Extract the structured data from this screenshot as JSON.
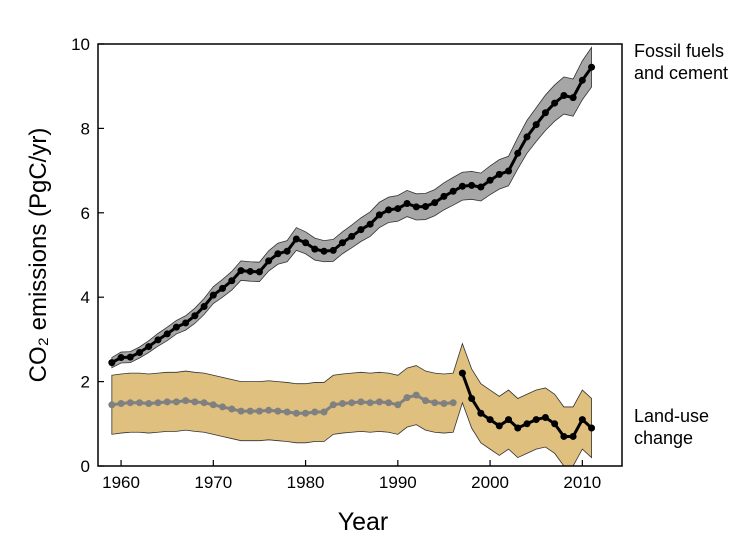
{
  "chart_data": {
    "type": "line",
    "xlabel": "Year",
    "ylabel": "CO₂ emissions (PgC/yr)",
    "x": [
      1959,
      1960,
      1961,
      1962,
      1963,
      1964,
      1965,
      1966,
      1967,
      1968,
      1969,
      1970,
      1971,
      1972,
      1973,
      1974,
      1975,
      1976,
      1977,
      1978,
      1979,
      1980,
      1981,
      1982,
      1983,
      1984,
      1985,
      1986,
      1987,
      1988,
      1989,
      1990,
      1991,
      1992,
      1993,
      1994,
      1995,
      1996,
      1997,
      1998,
      1999,
      2000,
      2001,
      2002,
      2003,
      2004,
      2005,
      2006,
      2007,
      2008,
      2009,
      2010,
      2011
    ],
    "xlim": [
      1957.5,
      2014.3
    ],
    "xticks": [
      1960,
      1970,
      1980,
      1990,
      2000,
      2010
    ],
    "ylim": [
      0,
      10
    ],
    "yticks": [
      0,
      2,
      4,
      6,
      8,
      10
    ],
    "series": [
      {
        "name": "Fossil fuels and cement",
        "color": "#000000",
        "band_color": "#a6a6a6",
        "values": [
          2.45,
          2.57,
          2.58,
          2.69,
          2.83,
          2.99,
          3.13,
          3.29,
          3.39,
          3.56,
          3.78,
          4.05,
          4.21,
          4.39,
          4.63,
          4.61,
          4.6,
          4.86,
          5.03,
          5.09,
          5.38,
          5.29,
          5.14,
          5.09,
          5.11,
          5.29,
          5.44,
          5.6,
          5.73,
          5.95,
          6.07,
          6.1,
          6.22,
          6.14,
          6.15,
          6.24,
          6.39,
          6.51,
          6.63,
          6.65,
          6.61,
          6.77,
          6.91,
          6.99,
          7.41,
          7.8,
          8.09,
          8.37,
          8.6,
          8.78,
          8.73,
          9.14,
          9.45
        ],
        "lower": [
          2.33,
          2.44,
          2.45,
          2.56,
          2.69,
          2.84,
          2.97,
          3.13,
          3.22,
          3.38,
          3.59,
          3.85,
          4.0,
          4.17,
          4.4,
          4.38,
          4.37,
          4.62,
          4.78,
          4.84,
          5.11,
          5.03,
          4.88,
          4.84,
          4.85,
          5.03,
          5.17,
          5.32,
          5.44,
          5.65,
          5.77,
          5.8,
          5.91,
          5.83,
          5.84,
          5.93,
          6.07,
          6.18,
          6.3,
          6.32,
          6.28,
          6.43,
          6.56,
          6.64,
          7.04,
          7.41,
          7.69,
          7.95,
          8.17,
          8.34,
          8.29,
          8.68,
          8.98
        ],
        "upper": [
          2.57,
          2.7,
          2.71,
          2.82,
          2.97,
          3.14,
          3.29,
          3.45,
          3.56,
          3.74,
          3.97,
          4.25,
          4.42,
          4.61,
          4.86,
          4.84,
          4.83,
          5.1,
          5.28,
          5.34,
          5.65,
          5.55,
          5.4,
          5.34,
          5.37,
          5.55,
          5.71,
          5.88,
          6.02,
          6.25,
          6.37,
          6.41,
          6.53,
          6.45,
          6.46,
          6.55,
          6.71,
          6.84,
          6.96,
          6.98,
          6.94,
          7.11,
          7.26,
          7.34,
          7.78,
          8.19,
          8.49,
          8.79,
          9.03,
          9.22,
          9.17,
          9.6,
          9.92
        ]
      },
      {
        "name": "Land-use change",
        "color": "#808080",
        "band_color": "#dfc07f",
        "values": [
          1.45,
          1.48,
          1.5,
          1.5,
          1.48,
          1.5,
          1.52,
          1.52,
          1.55,
          1.52,
          1.5,
          1.45,
          1.4,
          1.35,
          1.3,
          1.3,
          1.3,
          1.32,
          1.3,
          1.28,
          1.25,
          1.25,
          1.28,
          1.28,
          1.45,
          1.48,
          1.5,
          1.52,
          1.5,
          1.52,
          1.5,
          1.45,
          1.62,
          1.68,
          1.55,
          1.5,
          1.48,
          1.5,
          null,
          null,
          null,
          null,
          null,
          null,
          null,
          null,
          null,
          null,
          null,
          null,
          null,
          null,
          null
        ],
        "lower": [
          0.75,
          0.78,
          0.8,
          0.8,
          0.78,
          0.8,
          0.82,
          0.82,
          0.85,
          0.82,
          0.8,
          0.75,
          0.7,
          0.65,
          0.6,
          0.6,
          0.6,
          0.62,
          0.6,
          0.58,
          0.55,
          0.55,
          0.58,
          0.58,
          0.75,
          0.78,
          0.8,
          0.82,
          0.8,
          0.82,
          0.8,
          0.75,
          0.92,
          0.98,
          0.85,
          0.8,
          0.78,
          0.8,
          1.5,
          0.9,
          0.55,
          0.4,
          0.25,
          0.4,
          0.2,
          0.3,
          0.4,
          0.45,
          0.3,
          0.0,
          0.0,
          0.4,
          0.2
        ],
        "upper": [
          2.15,
          2.18,
          2.2,
          2.2,
          2.18,
          2.2,
          2.22,
          2.22,
          2.25,
          2.22,
          2.2,
          2.15,
          2.1,
          2.05,
          2.0,
          2.0,
          2.0,
          2.02,
          2.0,
          1.98,
          1.95,
          1.95,
          1.98,
          1.98,
          2.15,
          2.18,
          2.2,
          2.22,
          2.2,
          2.22,
          2.2,
          2.15,
          2.32,
          2.38,
          2.25,
          2.2,
          2.18,
          2.2,
          2.9,
          2.3,
          1.95,
          1.8,
          1.65,
          1.8,
          1.6,
          1.7,
          1.8,
          1.85,
          1.7,
          1.4,
          1.4,
          1.8,
          1.6
        ]
      },
      {
        "color": "#000000",
        "values": [
          null,
          null,
          null,
          null,
          null,
          null,
          null,
          null,
          null,
          null,
          null,
          null,
          null,
          null,
          null,
          null,
          null,
          null,
          null,
          null,
          null,
          null,
          null,
          null,
          null,
          null,
          null,
          null,
          null,
          null,
          null,
          null,
          null,
          null,
          null,
          null,
          null,
          null,
          2.2,
          1.6,
          1.25,
          1.1,
          0.95,
          1.1,
          0.9,
          1.0,
          1.1,
          1.15,
          1.0,
          0.7,
          0.7,
          1.1,
          0.9
        ]
      }
    ]
  }
}
